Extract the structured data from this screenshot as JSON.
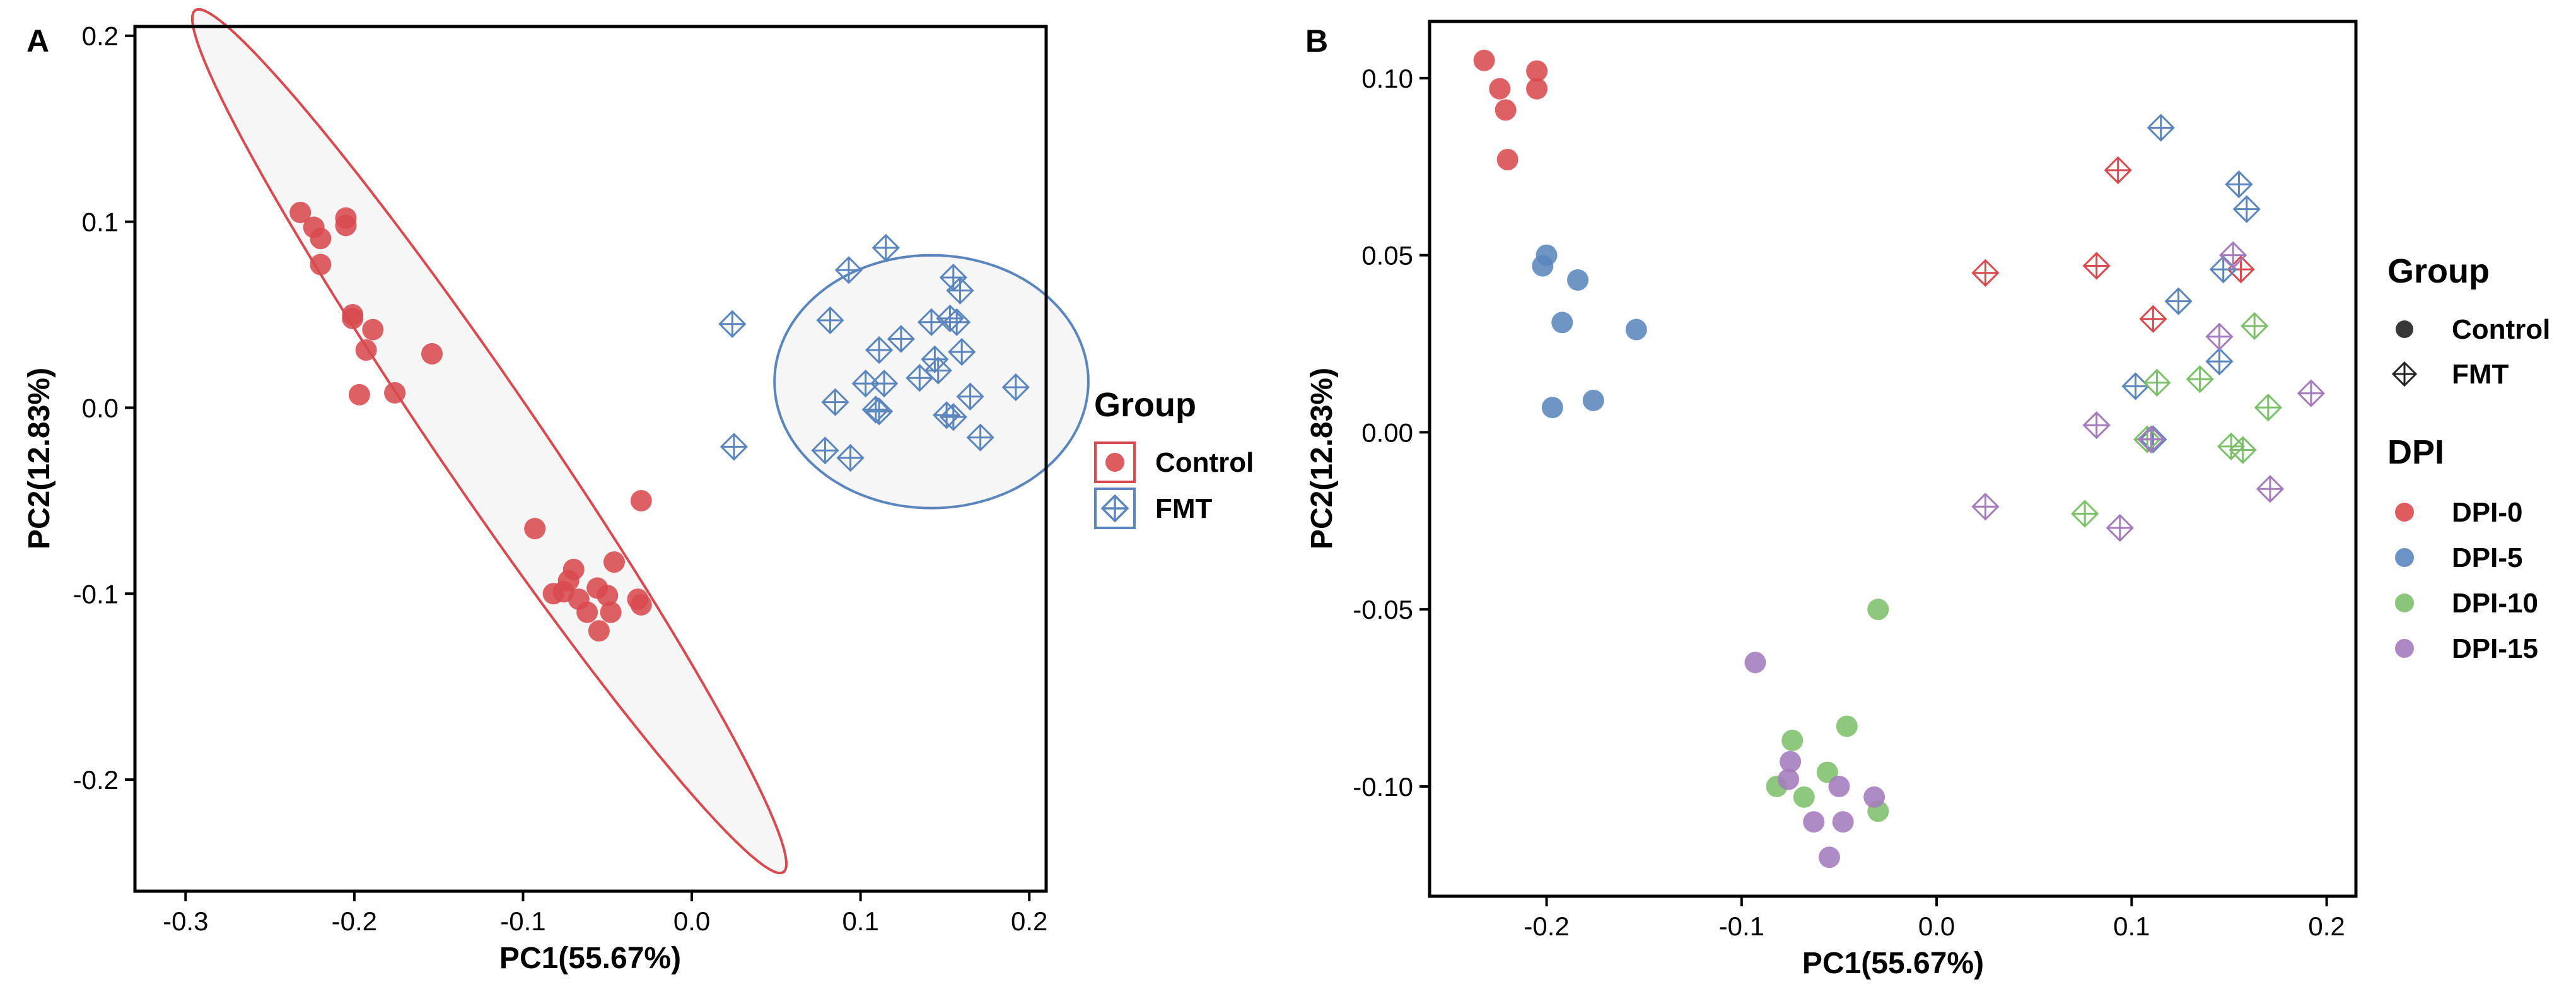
{
  "chart_data": [
    {
      "type": "scatter",
      "panel": "A",
      "xlabel": "PC1(55.67%)",
      "ylabel": "PC2(12.83%)",
      "xlim": [
        -0.33,
        0.21
      ],
      "ylim": [
        -0.26,
        0.205
      ],
      "xticks": [
        -0.3,
        -0.2,
        -0.1,
        0.0,
        0.1,
        0.2
      ],
      "xtick_labels": [
        "-0.3",
        "-0.2",
        "-0.1",
        "0.0",
        "0.1",
        "0.2"
      ],
      "yticks": [
        -0.2,
        -0.1,
        0.0,
        0.1,
        0.2
      ],
      "ytick_labels": [
        "-0.2",
        "-0.1",
        "0.0",
        "0.1",
        "0.2"
      ],
      "grid": false,
      "legend": {
        "title": "Group",
        "position": "right",
        "boxed_keys": true
      },
      "series": [
        {
          "name": "Control",
          "marker": "circle",
          "color": "#d84a4f",
          "points": [
            [
              -0.232,
              0.105
            ],
            [
              -0.224,
              0.097
            ],
            [
              -0.22,
              0.091
            ],
            [
              -0.22,
              0.077
            ],
            [
              -0.205,
              0.102
            ],
            [
              -0.205,
              0.098
            ],
            [
              -0.201,
              0.05
            ],
            [
              -0.201,
              0.048
            ],
            [
              -0.189,
              0.042
            ],
            [
              -0.193,
              0.031
            ],
            [
              -0.197,
              0.007
            ],
            [
              -0.176,
              0.008
            ],
            [
              -0.154,
              0.029
            ],
            [
              -0.093,
              -0.065
            ],
            [
              -0.082,
              -0.1
            ],
            [
              -0.076,
              -0.099
            ],
            [
              -0.073,
              -0.093
            ],
            [
              -0.07,
              -0.087
            ],
            [
              -0.067,
              -0.103
            ],
            [
              -0.062,
              -0.11
            ],
            [
              -0.056,
              -0.097
            ],
            [
              -0.055,
              -0.12
            ],
            [
              -0.05,
              -0.101
            ],
            [
              -0.048,
              -0.11
            ],
            [
              -0.046,
              -0.083
            ],
            [
              -0.032,
              -0.103
            ],
            [
              -0.03,
              -0.106
            ],
            [
              -0.03,
              -0.05
            ]
          ],
          "ellipse": {
            "cx": -0.12,
            "cy": -0.018,
            "a": 0.29,
            "b": 0.029,
            "angle_deg": -53
          }
        },
        {
          "name": "FMT",
          "marker": "diamond-plus",
          "color": "#5b86bd",
          "points": [
            [
              0.024,
              0.045
            ],
            [
              0.025,
              -0.021
            ],
            [
              0.079,
              -0.023
            ],
            [
              0.082,
              0.047
            ],
            [
              0.085,
              0.003
            ],
            [
              0.094,
              -0.027
            ],
            [
              0.093,
              0.074
            ],
            [
              0.103,
              0.013
            ],
            [
              0.109,
              -0.001
            ],
            [
              0.111,
              -0.002
            ],
            [
              0.111,
              0.031
            ],
            [
              0.114,
              0.013
            ],
            [
              0.115,
              0.086
            ],
            [
              0.124,
              0.037
            ],
            [
              0.135,
              0.016
            ],
            [
              0.142,
              0.046
            ],
            [
              0.144,
              0.026
            ],
            [
              0.146,
              0.02
            ],
            [
              0.151,
              -0.004
            ],
            [
              0.153,
              0.048
            ],
            [
              0.155,
              0.07
            ],
            [
              0.155,
              -0.005
            ],
            [
              0.157,
              0.046
            ],
            [
              0.159,
              0.063
            ],
            [
              0.16,
              0.03
            ],
            [
              0.165,
              0.006
            ],
            [
              0.171,
              -0.016
            ],
            [
              0.192,
              0.011
            ]
          ],
          "ellipse": {
            "cx": 0.142,
            "cy": 0.014,
            "a": 0.093,
            "b": 0.068,
            "angle_deg": 0
          }
        }
      ]
    },
    {
      "type": "scatter",
      "panel": "B",
      "xlabel": "PC1(55.67%)",
      "ylabel": "PC2(12.83%)",
      "xlim": [
        -0.26,
        0.215
      ],
      "ylim": [
        -0.131,
        0.116
      ],
      "xticks": [
        -0.2,
        -0.1,
        0.0,
        0.1,
        0.2
      ],
      "xtick_labels": [
        "-0.2",
        "-0.1",
        "0.0",
        "0.1",
        "0.2"
      ],
      "yticks": [
        -0.1,
        -0.05,
        0.0,
        0.05,
        0.1
      ],
      "ytick_labels": [
        "-0.10",
        "-0.05",
        "0.00",
        "0.05",
        "0.10"
      ],
      "grid": false,
      "legend": [
        {
          "title": "Group",
          "entries": [
            {
              "label": "Control",
              "marker": "circle",
              "color": "#222222"
            },
            {
              "label": "FMT",
              "marker": "diamond-plus",
              "color": "#222222"
            }
          ]
        },
        {
          "title": "DPI",
          "entries": [
            {
              "label": "DPI-0",
              "marker": "circle",
              "color": "#d84a4f"
            },
            {
              "label": "DPI-5",
              "marker": "circle",
              "color": "#5b86bd"
            },
            {
              "label": "DPI-10",
              "marker": "circle",
              "color": "#7dc06a"
            },
            {
              "label": "DPI-15",
              "marker": "circle",
              "color": "#a47bbd"
            }
          ]
        }
      ],
      "series": [
        {
          "name": "Control DPI-0",
          "group": "Control",
          "dpi": "DPI-0",
          "marker": "circle",
          "color": "#d84a4f",
          "points": [
            [
              -0.232,
              0.105
            ],
            [
              -0.224,
              0.097
            ],
            [
              -0.221,
              0.091
            ],
            [
              -0.22,
              0.077
            ],
            [
              -0.205,
              0.102
            ],
            [
              -0.205,
              0.097
            ]
          ]
        },
        {
          "name": "Control DPI-5",
          "group": "Control",
          "dpi": "DPI-5",
          "marker": "circle",
          "color": "#5b86bd",
          "points": [
            [
              -0.2,
              0.05
            ],
            [
              -0.202,
              0.047
            ],
            [
              -0.184,
              0.043
            ],
            [
              -0.192,
              0.031
            ],
            [
              -0.197,
              0.007
            ],
            [
              -0.176,
              0.009
            ],
            [
              -0.154,
              0.029
            ]
          ]
        },
        {
          "name": "Control DPI-10",
          "group": "Control",
          "dpi": "DPI-10",
          "marker": "circle",
          "color": "#7dc06a",
          "points": [
            [
              -0.03,
              -0.05
            ],
            [
              -0.082,
              -0.1
            ],
            [
              -0.074,
              -0.087
            ],
            [
              -0.068,
              -0.103
            ],
            [
              -0.056,
              -0.096
            ],
            [
              -0.046,
              -0.083
            ],
            [
              -0.03,
              -0.107
            ]
          ]
        },
        {
          "name": "Control DPI-15",
          "group": "Control",
          "dpi": "DPI-15",
          "marker": "circle",
          "color": "#a47bbd",
          "points": [
            [
              -0.093,
              -0.065
            ],
            [
              -0.075,
              -0.093
            ],
            [
              -0.076,
              -0.098
            ],
            [
              -0.063,
              -0.11
            ],
            [
              -0.05,
              -0.1
            ],
            [
              -0.048,
              -0.11
            ],
            [
              -0.055,
              -0.12
            ],
            [
              -0.032,
              -0.103
            ]
          ]
        },
        {
          "name": "FMT DPI-0",
          "group": "FMT",
          "dpi": "DPI-0",
          "marker": "diamond-plus",
          "color": "#d84a4f",
          "points": [
            [
              0.025,
              0.045
            ],
            [
              0.082,
              0.047
            ],
            [
              0.093,
              0.074
            ],
            [
              0.111,
              0.032
            ],
            [
              0.156,
              0.046
            ]
          ]
        },
        {
          "name": "FMT DPI-5",
          "group": "FMT",
          "dpi": "DPI-5",
          "marker": "diamond-plus",
          "color": "#5b86bd",
          "points": [
            [
              0.115,
              0.086
            ],
            [
              0.155,
              0.07
            ],
            [
              0.159,
              0.063
            ],
            [
              0.124,
              0.037
            ],
            [
              0.147,
              0.046
            ],
            [
              0.145,
              0.02
            ],
            [
              0.102,
              0.013
            ],
            [
              0.111,
              -0.002
            ]
          ]
        },
        {
          "name": "FMT DPI-10",
          "group": "FMT",
          "dpi": "DPI-10",
          "marker": "diamond-plus",
          "color": "#7dc06a",
          "points": [
            [
              0.163,
              0.03
            ],
            [
              0.135,
              0.015
            ],
            [
              0.113,
              0.014
            ],
            [
              0.108,
              -0.002
            ],
            [
              0.17,
              0.007
            ],
            [
              0.151,
              -0.004
            ],
            [
              0.157,
              -0.005
            ],
            [
              0.076,
              -0.023
            ]
          ]
        },
        {
          "name": "FMT DPI-15",
          "group": "FMT",
          "dpi": "DPI-15",
          "marker": "diamond-plus",
          "color": "#a47bbd",
          "points": [
            [
              0.152,
              0.05
            ],
            [
              0.145,
              0.027
            ],
            [
              0.192,
              0.011
            ],
            [
              0.082,
              0.002
            ],
            [
              0.11,
              -0.002
            ],
            [
              0.171,
              -0.016
            ],
            [
              0.025,
              -0.021
            ],
            [
              0.094,
              -0.027
            ]
          ]
        }
      ]
    }
  ]
}
